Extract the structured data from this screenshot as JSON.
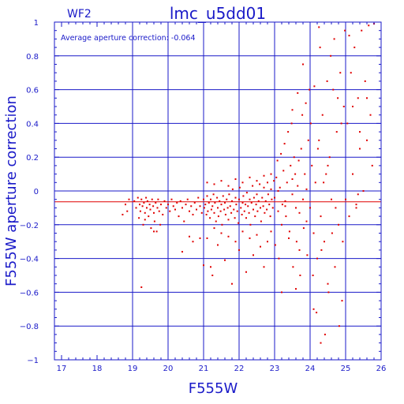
{
  "chart_data": {
    "type": "scatter",
    "panel_label": "WF2",
    "title": "lmc_u5dd01",
    "annotation": "Average aperture correction: -0.064",
    "xlabel": "F555W",
    "ylabel": "F555W aperture correction",
    "xlim": [
      16.8,
      26
    ],
    "ylim": [
      -1,
      1
    ],
    "x_ticks": [
      17,
      18,
      19,
      20,
      21,
      22,
      23,
      24,
      25,
      26
    ],
    "y_ticks": [
      -1,
      -0.8,
      -0.6,
      -0.4,
      -0.2,
      0,
      0.2,
      0.4,
      0.6,
      0.8,
      1
    ],
    "x_tick_labels": [
      "17",
      "18",
      "19",
      "20",
      "21",
      "22",
      "23",
      "24",
      "25",
      "26"
    ],
    "y_tick_labels": [
      "−1",
      "−0.8",
      "−0.6",
      "−0.4",
      "−0.2",
      "0",
      "0.2",
      "0.4",
      "0.6",
      "0.8",
      "1"
    ],
    "grid": true,
    "average_line": -0.064,
    "colors": {
      "axes": "#1a1ac8",
      "points": "#e00000",
      "average_line": "#e00000"
    },
    "points": [
      [
        18.72,
        -0.14
      ],
      [
        18.8,
        -0.08
      ],
      [
        18.85,
        -0.12
      ],
      [
        18.9,
        -0.05
      ],
      [
        19.05,
        -0.06
      ],
      [
        19.1,
        -0.1
      ],
      [
        19.15,
        -0.04
      ],
      [
        19.18,
        -0.16
      ],
      [
        19.2,
        -0.08
      ],
      [
        19.22,
        -0.12
      ],
      [
        19.25,
        -0.05
      ],
      [
        19.28,
        -0.09
      ],
      [
        19.3,
        -0.2
      ],
      [
        19.32,
        -0.07
      ],
      [
        19.35,
        -0.13
      ],
      [
        19.38,
        -0.04
      ],
      [
        19.4,
        -0.1
      ],
      [
        19.42,
        -0.06
      ],
      [
        19.45,
        -0.15
      ],
      [
        19.48,
        -0.08
      ],
      [
        19.5,
        -0.11
      ],
      [
        19.52,
        -0.22
      ],
      [
        19.55,
        -0.05
      ],
      [
        19.58,
        -0.09
      ],
      [
        19.6,
        -0.13
      ],
      [
        19.62,
        -0.18
      ],
      [
        19.65,
        -0.07
      ],
      [
        19.68,
        -0.24
      ],
      [
        19.7,
        -0.1
      ],
      [
        19.72,
        -0.05
      ],
      [
        19.75,
        -0.12
      ],
      [
        19.78,
        -0.2
      ],
      [
        19.8,
        -0.08
      ],
      [
        19.85,
        -0.14
      ],
      [
        19.9,
        -0.06
      ],
      [
        19.95,
        -0.1
      ],
      [
        20.0,
        -0.08
      ],
      [
        20.05,
        -0.12
      ],
      [
        20.1,
        -0.05
      ],
      [
        20.15,
        -0.09
      ],
      [
        20.2,
        -0.11
      ],
      [
        20.25,
        -0.07
      ],
      [
        20.3,
        -0.15
      ],
      [
        20.35,
        -0.06
      ],
      [
        20.4,
        -0.1
      ],
      [
        20.45,
        -0.18
      ],
      [
        20.5,
        -0.08
      ],
      [
        20.55,
        -0.05
      ],
      [
        20.6,
        -0.12
      ],
      [
        20.65,
        -0.09
      ],
      [
        20.7,
        -0.14
      ],
      [
        20.75,
        -0.07
      ],
      [
        20.8,
        -0.11
      ],
      [
        20.85,
        -0.04
      ],
      [
        20.9,
        -0.09
      ],
      [
        20.95,
        -0.13
      ],
      [
        19.25,
        -0.57
      ],
      [
        19.35,
        -0.17
      ],
      [
        19.6,
        -0.24
      ],
      [
        20.4,
        -0.36
      ],
      [
        20.6,
        -0.27
      ],
      [
        20.7,
        -0.3
      ],
      [
        20.9,
        -0.28
      ],
      [
        21.0,
        -0.05
      ],
      [
        21.02,
        -0.1
      ],
      [
        21.05,
        -0.08
      ],
      [
        21.08,
        -0.14
      ],
      [
        21.1,
        -0.03
      ],
      [
        21.12,
        -0.12
      ],
      [
        21.15,
        -0.07
      ],
      [
        21.18,
        -0.16
      ],
      [
        21.2,
        -0.05
      ],
      [
        21.22,
        -0.11
      ],
      [
        21.25,
        -0.09
      ],
      [
        21.28,
        -0.02
      ],
      [
        21.3,
        -0.13
      ],
      [
        21.32,
        -0.07
      ],
      [
        21.35,
        -0.18
      ],
      [
        21.38,
        -0.04
      ],
      [
        21.4,
        -0.1
      ],
      [
        21.42,
        -0.15
      ],
      [
        21.45,
        -0.06
      ],
      [
        21.48,
        -0.12
      ],
      [
        21.5,
        -0.08
      ],
      [
        21.52,
        -0.2
      ],
      [
        21.55,
        -0.03
      ],
      [
        21.58,
        -0.11
      ],
      [
        21.6,
        -0.07
      ],
      [
        21.62,
        -0.14
      ],
      [
        21.65,
        -0.05
      ],
      [
        21.68,
        -0.1
      ],
      [
        21.7,
        -0.17
      ],
      [
        21.72,
        -0.02
      ],
      [
        21.75,
        -0.09
      ],
      [
        21.78,
        -0.13
      ],
      [
        21.8,
        -0.06
      ],
      [
        21.82,
        0.01
      ],
      [
        21.85,
        -0.11
      ],
      [
        21.88,
        -0.16
      ],
      [
        21.9,
        -0.04
      ],
      [
        21.92,
        -0.08
      ],
      [
        21.95,
        -0.12
      ],
      [
        21.98,
        -0.19
      ],
      [
        22.0,
        -0.05
      ],
      [
        22.02,
        0.02
      ],
      [
        22.05,
        -0.1
      ],
      [
        22.08,
        -0.14
      ],
      [
        22.1,
        -0.07
      ],
      [
        22.12,
        -0.03
      ],
      [
        22.15,
        -0.12
      ],
      [
        22.18,
        -0.08
      ],
      [
        22.2,
        -0.16
      ],
      [
        22.22,
        -0.01
      ],
      [
        22.25,
        -0.09
      ],
      [
        22.28,
        -0.13
      ],
      [
        22.3,
        -0.05
      ],
      [
        22.32,
        -0.2
      ],
      [
        22.35,
        -0.07
      ],
      [
        22.38,
        0.03
      ],
      [
        22.4,
        -0.11
      ],
      [
        22.42,
        -0.04
      ],
      [
        22.45,
        -0.15
      ],
      [
        22.48,
        -0.08
      ],
      [
        22.5,
        -0.02
      ],
      [
        22.52,
        -0.12
      ],
      [
        22.55,
        -0.06
      ],
      [
        22.58,
        0.04
      ],
      [
        22.6,
        -0.1
      ],
      [
        22.62,
        -0.18
      ],
      [
        22.65,
        -0.04
      ],
      [
        22.68,
        -0.09
      ],
      [
        22.7,
        0.02
      ],
      [
        22.72,
        -0.13
      ],
      [
        22.75,
        -0.06
      ],
      [
        22.78,
        -0.11
      ],
      [
        22.8,
        0.05
      ],
      [
        22.82,
        -0.02
      ],
      [
        22.85,
        -0.08
      ],
      [
        22.88,
        -0.15
      ],
      [
        22.9,
        0.01
      ],
      [
        22.92,
        -0.05
      ],
      [
        22.95,
        -0.1
      ],
      [
        22.98,
        0.06
      ],
      [
        21.1,
        -0.28
      ],
      [
        21.2,
        -0.45
      ],
      [
        21.3,
        -0.22
      ],
      [
        21.4,
        -0.32
      ],
      [
        21.5,
        -0.25
      ],
      [
        21.6,
        -0.41
      ],
      [
        21.7,
        -0.27
      ],
      [
        21.8,
        -0.55
      ],
      [
        21.9,
        -0.3
      ],
      [
        22.0,
        -0.35
      ],
      [
        22.1,
        -0.24
      ],
      [
        22.2,
        -0.48
      ],
      [
        22.3,
        -0.28
      ],
      [
        22.4,
        -0.38
      ],
      [
        22.5,
        -0.26
      ],
      [
        22.6,
        -0.33
      ],
      [
        22.7,
        -0.45
      ],
      [
        22.8,
        -0.3
      ],
      [
        22.9,
        -0.24
      ],
      [
        21.1,
        0.05
      ],
      [
        21.3,
        0.04
      ],
      [
        21.5,
        0.06
      ],
      [
        21.7,
        0.03
      ],
      [
        21.9,
        0.07
      ],
      [
        22.1,
        0.05
      ],
      [
        22.3,
        0.08
      ],
      [
        22.5,
        0.06
      ],
      [
        22.7,
        0.09
      ],
      [
        22.9,
        0.1
      ],
      [
        21.0,
        -0.44
      ],
      [
        21.25,
        -0.5
      ],
      [
        23.0,
        -0.04
      ],
      [
        23.05,
        0.08
      ],
      [
        23.1,
        -0.12
      ],
      [
        23.15,
        0.02
      ],
      [
        23.2,
        -0.2
      ],
      [
        23.25,
        0.12
      ],
      [
        23.3,
        -0.06
      ],
      [
        23.35,
        0.05
      ],
      [
        23.4,
        -0.28
      ],
      [
        23.45,
        0.15
      ],
      [
        23.5,
        -0.02
      ],
      [
        23.55,
        0.2
      ],
      [
        23.6,
        -0.1
      ],
      [
        23.65,
        0.03
      ],
      [
        23.7,
        -0.35
      ],
      [
        23.75,
        0.25
      ],
      [
        23.8,
        -0.05
      ],
      [
        23.85,
        0.1
      ],
      [
        23.9,
        -0.18
      ],
      [
        23.95,
        0.3
      ],
      [
        23.02,
        -0.32
      ],
      [
        23.08,
        0.18
      ],
      [
        23.12,
        -0.4
      ],
      [
        23.18,
        0.22
      ],
      [
        23.22,
        -0.08
      ],
      [
        23.28,
        0.28
      ],
      [
        23.32,
        -0.15
      ],
      [
        23.38,
        0.35
      ],
      [
        23.42,
        -0.24
      ],
      [
        23.48,
        0.4
      ],
      [
        23.52,
        -0.45
      ],
      [
        23.58,
        0.1
      ],
      [
        23.62,
        -0.3
      ],
      [
        23.68,
        0.18
      ],
      [
        23.72,
        -0.5
      ],
      [
        23.78,
        0.45
      ],
      [
        23.82,
        -0.22
      ],
      [
        23.88,
        0.52
      ],
      [
        23.92,
        -0.38
      ],
      [
        23.98,
        0.6
      ],
      [
        23.1,
        0.0
      ],
      [
        23.3,
        -0.09
      ],
      [
        23.5,
        0.07
      ],
      [
        23.7,
        -0.13
      ],
      [
        23.9,
        0.01
      ],
      [
        23.2,
        -0.6
      ],
      [
        23.6,
        -0.58
      ],
      [
        23.8,
        0.75
      ],
      [
        23.65,
        0.58
      ],
      [
        23.5,
        0.48
      ],
      [
        24.0,
        -0.1
      ],
      [
        24.05,
        0.15
      ],
      [
        24.1,
        -0.25
      ],
      [
        24.15,
        0.05
      ],
      [
        24.2,
        -0.4
      ],
      [
        24.25,
        0.3
      ],
      [
        24.3,
        -0.15
      ],
      [
        24.35,
        0.45
      ],
      [
        24.4,
        -0.3
      ],
      [
        24.45,
        0.1
      ],
      [
        24.5,
        -0.55
      ],
      [
        24.55,
        0.2
      ],
      [
        24.6,
        -0.05
      ],
      [
        24.65,
        0.6
      ],
      [
        24.7,
        -0.45
      ],
      [
        24.75,
        0.35
      ],
      [
        24.8,
        -0.2
      ],
      [
        24.85,
        0.7
      ],
      [
        24.9,
        -0.65
      ],
      [
        24.95,
        0.5
      ],
      [
        24.02,
        0.4
      ],
      [
        24.08,
        -0.5
      ],
      [
        24.12,
        0.62
      ],
      [
        24.18,
        -0.72
      ],
      [
        24.22,
        0.25
      ],
      [
        24.28,
        0.85
      ],
      [
        24.32,
        -0.35
      ],
      [
        24.38,
        0.05
      ],
      [
        24.42,
        -0.85
      ],
      [
        24.48,
        0.65
      ],
      [
        24.52,
        -0.6
      ],
      [
        24.58,
        0.8
      ],
      [
        24.62,
        -0.25
      ],
      [
        24.68,
        0.9
      ],
      [
        24.72,
        -0.1
      ],
      [
        24.78,
        0.55
      ],
      [
        24.82,
        -0.8
      ],
      [
        24.88,
        0.4
      ],
      [
        24.92,
        -0.3
      ],
      [
        24.98,
        0.95
      ],
      [
        24.3,
        -0.9
      ],
      [
        24.25,
        0.97
      ],
      [
        24.1,
        -0.7
      ],
      [
        24.5,
        0.15
      ],
      [
        25.0,
        -0.05
      ],
      [
        25.05,
        0.4
      ],
      [
        25.1,
        -0.15
      ],
      [
        25.15,
        0.7
      ],
      [
        25.2,
        0.1
      ],
      [
        25.25,
        0.85
      ],
      [
        25.3,
        -0.08
      ],
      [
        25.35,
        0.55
      ],
      [
        25.4,
        0.25
      ],
      [
        25.45,
        0.95
      ],
      [
        25.5,
        0.0
      ],
      [
        25.55,
        0.65
      ],
      [
        25.6,
        0.3
      ],
      [
        25.65,
        0.98
      ],
      [
        25.7,
        0.45
      ],
      [
        25.75,
        0.15
      ],
      [
        25.8,
        0.99
      ],
      [
        25.1,
        0.92
      ],
      [
        25.2,
        0.5
      ],
      [
        25.35,
        -0.02
      ],
      [
        25.4,
        0.35
      ],
      [
        25.6,
        0.55
      ],
      [
        25.3,
        -0.1
      ]
    ]
  }
}
